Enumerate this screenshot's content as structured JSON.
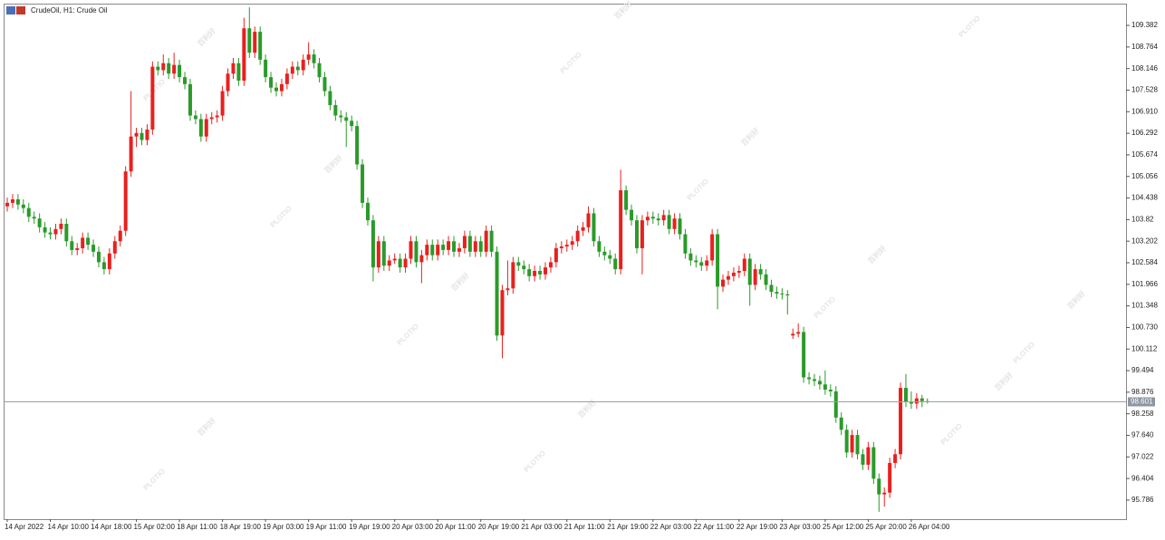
{
  "chart_data": {
    "type": "candlestick",
    "title": "CrudeOil, H1:  Crude Oil",
    "watermark": {
      "brand": "PLOTIO",
      "cn": "百利好"
    },
    "up_color": "#e8201e",
    "down_color": "#2a9a2a",
    "last_price": 98.601,
    "ylim": [
      95.24,
      109.98
    ],
    "yticks": [
      109.382,
      108.764,
      108.146,
      107.528,
      {
        "value": 106.91,
        "label": "106.910"
      },
      106.292,
      105.674,
      105.056,
      104.438,
      103.82,
      103.202,
      102.584,
      101.966,
      101.348,
      {
        "value": 100.73,
        "label": "100.730"
      },
      100.112,
      99.494,
      98.876,
      98.258,
      {
        "value": 97.64,
        "label": "97.640"
      },
      97.022,
      96.404,
      95.786
    ],
    "categories": [
      "14 Apr 2022",
      null,
      null,
      null,
      null,
      null,
      null,
      null,
      "14 Apr 10:00",
      null,
      null,
      null,
      null,
      null,
      null,
      null,
      "14 Apr 18:00",
      null,
      null,
      null,
      null,
      null,
      null,
      null,
      "15 Apr 02:00",
      null,
      null,
      null,
      null,
      null,
      null,
      null,
      "18 Apr 11:00",
      null,
      null,
      null,
      null,
      null,
      null,
      null,
      "18 Apr 19:00",
      null,
      null,
      null,
      null,
      null,
      null,
      null,
      "19 Apr 03:00",
      null,
      null,
      null,
      null,
      null,
      null,
      null,
      "19 Apr 11:00",
      null,
      null,
      null,
      null,
      null,
      null,
      null,
      "19 Apr 19:00",
      null,
      null,
      null,
      null,
      null,
      null,
      null,
      "20 Apr 03:00",
      null,
      null,
      null,
      null,
      null,
      null,
      null,
      "20 Apr 11:00",
      null,
      null,
      null,
      null,
      null,
      null,
      null,
      "20 Apr 19:00",
      null,
      null,
      null,
      null,
      null,
      null,
      null,
      "21 Apr 03:00",
      null,
      null,
      null,
      null,
      null,
      null,
      null,
      "21 Apr 11:00",
      null,
      null,
      null,
      null,
      null,
      null,
      null,
      "21 Apr 19:00",
      null,
      null,
      null,
      null,
      null,
      null,
      null,
      "22 Apr 03:00",
      null,
      null,
      null,
      null,
      null,
      null,
      null,
      "22 Apr 11:00",
      null,
      null,
      null,
      null,
      null,
      null,
      null,
      "22 Apr 19:00",
      null,
      null,
      null,
      null,
      null,
      null,
      null,
      "23 Apr 03:00",
      null,
      null,
      null,
      null,
      null,
      null,
      null,
      "25 Apr 12:00",
      null,
      null,
      null,
      null,
      null,
      null,
      null,
      "25 Apr 20:00",
      null,
      null,
      null,
      null,
      null,
      null,
      null,
      "26 Apr 04:00",
      null,
      null,
      null
    ],
    "ohlc": [
      [
        104.2,
        104.45,
        104.05,
        104.3
      ],
      [
        104.3,
        104.55,
        104.15,
        104.4
      ],
      [
        104.4,
        104.55,
        104.1,
        104.25
      ],
      [
        104.25,
        104.4,
        104.0,
        104.15
      ],
      [
        104.15,
        104.3,
        103.75,
        103.9
      ],
      [
        103.9,
        104.05,
        103.7,
        103.85
      ],
      [
        103.85,
        104.0,
        103.45,
        103.6
      ],
      [
        103.6,
        103.75,
        103.3,
        103.45
      ],
      [
        103.45,
        103.6,
        103.25,
        103.4
      ],
      [
        103.4,
        103.7,
        103.25,
        103.55
      ],
      [
        103.55,
        103.85,
        103.4,
        103.7
      ],
      [
        103.7,
        103.85,
        103.05,
        103.2
      ],
      [
        103.2,
        103.35,
        102.8,
        102.95
      ],
      [
        102.95,
        103.15,
        102.8,
        103.0
      ],
      [
        103.0,
        103.45,
        102.85,
        103.3
      ],
      [
        103.3,
        103.45,
        102.95,
        103.1
      ],
      [
        103.1,
        103.25,
        102.75,
        102.9
      ],
      [
        102.9,
        103.05,
        102.45,
        102.6
      ],
      [
        102.6,
        102.75,
        102.25,
        102.4
      ],
      [
        102.4,
        103.0,
        102.25,
        102.85
      ],
      [
        102.85,
        103.35,
        102.7,
        103.2
      ],
      [
        103.2,
        103.65,
        103.05,
        103.5
      ],
      [
        103.5,
        105.35,
        103.35,
        105.2
      ],
      [
        105.2,
        107.5,
        105.05,
        106.2
      ],
      [
        106.2,
        106.45,
        105.9,
        106.3
      ],
      [
        106.3,
        106.45,
        105.95,
        106.1
      ],
      [
        106.1,
        106.55,
        105.95,
        106.4
      ],
      [
        106.4,
        108.35,
        106.25,
        108.2
      ],
      [
        108.2,
        108.35,
        107.95,
        108.1
      ],
      [
        108.1,
        108.55,
        107.95,
        108.3
      ],
      [
        108.3,
        108.45,
        107.85,
        108.0
      ],
      [
        108.0,
        108.6,
        107.85,
        108.25
      ],
      [
        108.25,
        108.4,
        107.75,
        107.9
      ],
      [
        107.9,
        108.05,
        107.55,
        107.7
      ],
      [
        107.7,
        107.85,
        106.65,
        106.8
      ],
      [
        106.8,
        106.95,
        106.55,
        106.7
      ],
      [
        106.7,
        106.85,
        106.05,
        106.2
      ],
      [
        106.2,
        106.85,
        106.05,
        106.7
      ],
      [
        106.7,
        106.9,
        106.55,
        106.75
      ],
      [
        106.75,
        106.95,
        106.6,
        106.8
      ],
      [
        106.8,
        107.65,
        106.65,
        107.5
      ],
      [
        107.5,
        108.15,
        107.35,
        108.0
      ],
      [
        108.0,
        108.45,
        107.85,
        108.3
      ],
      [
        108.3,
        108.45,
        107.65,
        107.8
      ],
      [
        107.8,
        109.6,
        107.65,
        109.3
      ],
      [
        109.3,
        109.9,
        108.45,
        108.6
      ],
      [
        108.6,
        109.35,
        108.45,
        109.2
      ],
      [
        109.2,
        109.35,
        108.25,
        108.4
      ],
      [
        108.4,
        108.55,
        107.75,
        107.9
      ],
      [
        107.9,
        108.05,
        107.45,
        107.6
      ],
      [
        107.6,
        107.75,
        107.35,
        107.5
      ],
      [
        107.5,
        107.85,
        107.35,
        107.7
      ],
      [
        107.7,
        108.15,
        107.55,
        108.0
      ],
      [
        108.0,
        108.35,
        107.85,
        108.2
      ],
      [
        108.2,
        108.35,
        107.95,
        108.1
      ],
      [
        108.1,
        108.55,
        107.95,
        108.4
      ],
      [
        108.4,
        108.9,
        108.25,
        108.55
      ],
      [
        108.55,
        108.7,
        108.15,
        108.3
      ],
      [
        108.3,
        108.45,
        107.75,
        107.9
      ],
      [
        107.9,
        108.05,
        107.35,
        107.5
      ],
      [
        107.5,
        107.65,
        106.95,
        107.1
      ],
      [
        107.1,
        107.25,
        106.65,
        106.8
      ],
      [
        106.8,
        106.95,
        106.6,
        106.75
      ],
      [
        106.75,
        106.9,
        105.9,
        106.65
      ],
      [
        106.65,
        106.8,
        106.35,
        106.5
      ],
      [
        106.5,
        106.65,
        105.25,
        105.4
      ],
      [
        105.4,
        105.55,
        104.15,
        104.3
      ],
      [
        104.3,
        104.45,
        103.65,
        103.8
      ],
      [
        103.8,
        103.95,
        102.05,
        102.45
      ],
      [
        102.45,
        103.35,
        102.3,
        103.2
      ],
      [
        103.2,
        103.35,
        102.35,
        102.5
      ],
      [
        102.5,
        102.8,
        102.35,
        102.65
      ],
      [
        102.65,
        102.85,
        102.55,
        102.7
      ],
      [
        102.7,
        102.85,
        102.3,
        102.45
      ],
      [
        102.45,
        102.85,
        102.3,
        102.7
      ],
      [
        102.7,
        103.35,
        102.55,
        103.2
      ],
      [
        103.2,
        103.35,
        102.45,
        102.6
      ],
      [
        102.6,
        102.95,
        102.0,
        102.8
      ],
      [
        102.8,
        103.25,
        102.65,
        103.1
      ],
      [
        103.1,
        103.25,
        102.65,
        102.8
      ],
      [
        102.8,
        103.25,
        102.65,
        103.1
      ],
      [
        103.1,
        103.25,
        102.8,
        102.95
      ],
      [
        102.95,
        103.35,
        102.8,
        103.2
      ],
      [
        103.2,
        103.35,
        102.75,
        102.9
      ],
      [
        102.9,
        103.15,
        102.75,
        103.0
      ],
      [
        103.0,
        103.5,
        102.85,
        103.35
      ],
      [
        103.35,
        103.5,
        102.75,
        102.9
      ],
      [
        102.9,
        103.35,
        102.75,
        103.2
      ],
      [
        103.2,
        103.35,
        102.75,
        102.9
      ],
      [
        102.9,
        103.65,
        102.75,
        103.5
      ],
      [
        103.5,
        103.65,
        102.75,
        102.9
      ],
      [
        102.9,
        103.05,
        100.35,
        100.5
      ],
      [
        100.5,
        101.95,
        99.85,
        101.8
      ],
      [
        101.8,
        102.65,
        101.65,
        101.85
      ],
      [
        101.85,
        102.75,
        101.7,
        102.6
      ],
      [
        102.6,
        102.75,
        102.35,
        102.5
      ],
      [
        102.5,
        102.65,
        102.25,
        102.4
      ],
      [
        102.4,
        102.55,
        102.05,
        102.2
      ],
      [
        102.2,
        102.5,
        102.05,
        102.35
      ],
      [
        102.35,
        102.5,
        102.1,
        102.25
      ],
      [
        102.25,
        102.6,
        102.1,
        102.45
      ],
      [
        102.45,
        102.75,
        102.3,
        102.6
      ],
      [
        102.6,
        103.15,
        102.45,
        103.0
      ],
      [
        103.0,
        103.2,
        102.85,
        103.05
      ],
      [
        103.05,
        103.25,
        102.9,
        103.1
      ],
      [
        103.1,
        103.35,
        102.95,
        103.2
      ],
      [
        103.2,
        103.65,
        103.05,
        103.5
      ],
      [
        103.5,
        103.75,
        103.35,
        103.6
      ],
      [
        103.6,
        104.2,
        103.45,
        104.0
      ],
      [
        104.0,
        104.15,
        103.05,
        103.2
      ],
      [
        103.2,
        103.35,
        102.75,
        102.9
      ],
      [
        102.9,
        103.05,
        102.65,
        102.8
      ],
      [
        102.8,
        102.95,
        102.55,
        102.7
      ],
      [
        102.7,
        102.85,
        102.25,
        102.4
      ],
      [
        102.4,
        105.25,
        102.25,
        104.66
      ],
      [
        104.66,
        104.8,
        103.95,
        104.1
      ],
      [
        104.1,
        104.25,
        103.65,
        103.8
      ],
      [
        103.8,
        103.95,
        102.85,
        103.0
      ],
      [
        103.0,
        103.95,
        102.25,
        103.8
      ],
      [
        103.8,
        104.05,
        103.65,
        103.9
      ],
      [
        103.9,
        104.05,
        103.7,
        103.85
      ],
      [
        103.85,
        104.0,
        103.65,
        103.8
      ],
      [
        103.8,
        104.1,
        103.65,
        103.95
      ],
      [
        103.95,
        104.1,
        103.4,
        103.55
      ],
      [
        103.55,
        104.0,
        103.4,
        103.85
      ],
      [
        103.85,
        104.0,
        103.25,
        103.4
      ],
      [
        103.4,
        103.55,
        102.7,
        102.85
      ],
      [
        102.85,
        103.0,
        102.5,
        102.65
      ],
      [
        102.65,
        102.8,
        102.45,
        102.6
      ],
      [
        102.6,
        102.75,
        102.35,
        102.5
      ],
      [
        102.5,
        102.8,
        102.35,
        102.65
      ],
      [
        102.65,
        103.55,
        102.5,
        103.4
      ],
      [
        103.4,
        103.55,
        101.25,
        101.9
      ],
      [
        101.9,
        102.25,
        101.75,
        102.1
      ],
      [
        102.1,
        102.35,
        101.95,
        102.2
      ],
      [
        102.2,
        102.45,
        102.05,
        102.3
      ],
      [
        102.3,
        102.5,
        102.15,
        102.35
      ],
      [
        102.35,
        102.85,
        102.2,
        102.7
      ],
      [
        102.7,
        102.85,
        101.35,
        101.95
      ],
      [
        101.95,
        102.55,
        101.8,
        102.4
      ],
      [
        102.4,
        102.55,
        102.1,
        102.25
      ],
      [
        102.25,
        102.4,
        101.8,
        101.95
      ],
      [
        101.95,
        102.1,
        101.6,
        101.75
      ],
      [
        101.75,
        101.9,
        101.55,
        101.7
      ],
      [
        101.7,
        101.85,
        101.53,
        101.68
      ],
      [
        101.68,
        101.8,
        101.1,
        101.65
      ],
      [
        100.5,
        100.7,
        100.4,
        100.55
      ],
      [
        100.55,
        100.85,
        100.45,
        100.6
      ],
      [
        100.6,
        100.75,
        99.15,
        99.3
      ],
      [
        99.3,
        99.45,
        99.1,
        99.25
      ],
      [
        99.25,
        99.4,
        99.05,
        99.2
      ],
      [
        99.2,
        99.35,
        98.95,
        99.1
      ],
      [
        99.1,
        99.5,
        98.8,
        98.95
      ],
      [
        98.95,
        99.1,
        98.75,
        98.9
      ],
      [
        98.9,
        99.05,
        98.0,
        98.15
      ],
      [
        98.15,
        98.3,
        97.65,
        97.8
      ],
      [
        97.8,
        97.95,
        97.0,
        97.15
      ],
      [
        97.15,
        97.8,
        97.0,
        97.65
      ],
      [
        97.65,
        97.8,
        96.95,
        97.1
      ],
      [
        97.1,
        97.25,
        96.65,
        96.8
      ],
      [
        96.8,
        97.45,
        96.65,
        97.3
      ],
      [
        97.3,
        97.45,
        96.25,
        96.4
      ],
      [
        96.4,
        96.55,
        95.45,
        95.95
      ],
      [
        95.95,
        96.15,
        95.6,
        96.0
      ],
      [
        96.0,
        97.0,
        95.85,
        96.85
      ],
      [
        96.85,
        97.25,
        96.7,
        97.1
      ],
      [
        97.1,
        99.15,
        96.95,
        99.0
      ],
      [
        99.0,
        99.4,
        98.45,
        98.6
      ],
      [
        98.6,
        98.9,
        98.4,
        98.55
      ],
      [
        98.55,
        98.85,
        98.4,
        98.7
      ],
      [
        98.7,
        98.8,
        98.45,
        98.62
      ],
      [
        98.62,
        98.7,
        98.55,
        98.6
      ]
    ]
  }
}
